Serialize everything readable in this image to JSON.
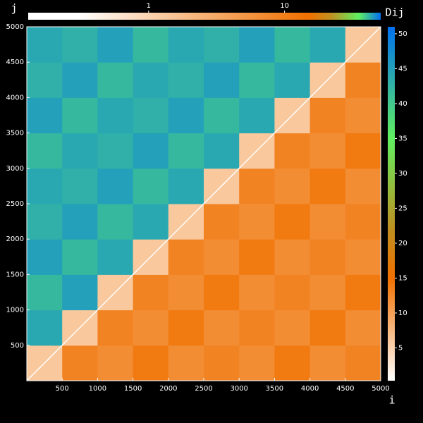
{
  "chart_data": {
    "type": "heatmap",
    "xlabel": "i",
    "ylabel": "j",
    "colorbar_label": "Dij",
    "xlim": [
      0,
      5000
    ],
    "ylim": [
      0,
      5000
    ],
    "xticks": [
      500,
      1000,
      1500,
      2000,
      2500,
      3000,
      3500,
      4000,
      4500,
      5000
    ],
    "yticks": [
      500,
      1000,
      1500,
      2000,
      2500,
      3000,
      3500,
      4000,
      4500,
      5000
    ],
    "x_edges": [
      0,
      500,
      1000,
      1500,
      2000,
      2500,
      3000,
      3500,
      4000,
      4500,
      5000
    ],
    "y_edges": [
      0,
      500,
      1000,
      1500,
      2000,
      2500,
      3000,
      3500,
      4000,
      4500,
      5000
    ],
    "z": [
      [
        6,
        13,
        12,
        14,
        12,
        13,
        12,
        14,
        12,
        13
      ],
      [
        44,
        6,
        13,
        12,
        14,
        12,
        13,
        12,
        14,
        12
      ],
      [
        42,
        45,
        6,
        13,
        12,
        14,
        12,
        13,
        12,
        14
      ],
      [
        45,
        42,
        44,
        6,
        13,
        12,
        14,
        12,
        13,
        12
      ],
      [
        43,
        45,
        42,
        44,
        6,
        13,
        12,
        14,
        12,
        13
      ],
      [
        44,
        43,
        45,
        42,
        44,
        6,
        13,
        12,
        14,
        12
      ],
      [
        42,
        44,
        43,
        45,
        42,
        44,
        6,
        13,
        12,
        14
      ],
      [
        45,
        42,
        44,
        43,
        45,
        42,
        44,
        6,
        13,
        12
      ],
      [
        43,
        45,
        42,
        44,
        43,
        45,
        42,
        44,
        6,
        13
      ],
      [
        44,
        43,
        45,
        42,
        44,
        43,
        45,
        42,
        44,
        6
      ]
    ],
    "colormap": [
      {
        "value": 0.3,
        "color": "#ffffff"
      },
      {
        "value": 15,
        "color": "#f07000"
      },
      {
        "value": 22,
        "color": "#c09020"
      },
      {
        "value": 35,
        "color": "#60f060"
      },
      {
        "value": 51,
        "color": "#0070f0"
      }
    ],
    "colorbar_lim": [
      0.3,
      51
    ],
    "colorbar_ticks": [
      5,
      10,
      15,
      20,
      25,
      30,
      35,
      40,
      45,
      50
    ],
    "log_colorbar_lim": [
      0.13,
      51
    ],
    "log_colorbar_ticks": [
      1,
      10
    ],
    "log_colorbar_scale": "log"
  }
}
